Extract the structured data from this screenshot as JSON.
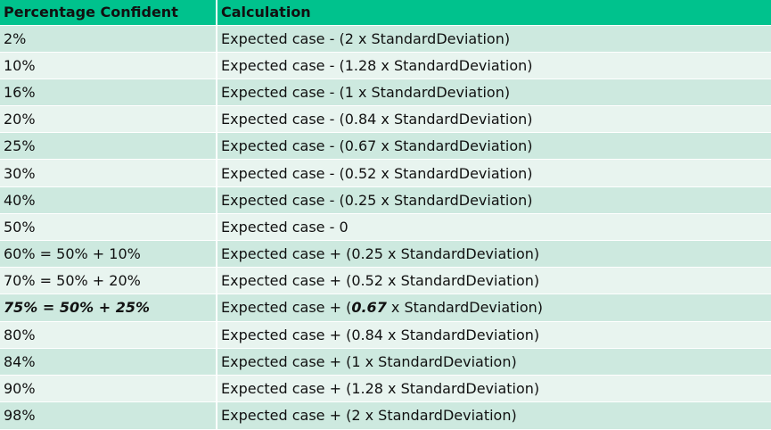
{
  "table": {
    "headers": [
      "Percentage Confident",
      "Calculation"
    ],
    "rows": [
      {
        "pct": "2%",
        "calc": "Expected case - (2 x StandardDeviation)"
      },
      {
        "pct": "10%",
        "calc": "Expected case - (1.28 x StandardDeviation)"
      },
      {
        "pct": "16%",
        "calc": "Expected case - (1 x StandardDeviation)"
      },
      {
        "pct": "20%",
        "calc": "Expected case - (0.84 x StandardDeviation)"
      },
      {
        "pct": "25%",
        "calc": "Expected case - (0.67 x StandardDeviation)"
      },
      {
        "pct": "30%",
        "calc": "Expected case - (0.52 x StandardDeviation)"
      },
      {
        "pct": "40%",
        "calc": "Expected case - (0.25 x StandardDeviation)"
      },
      {
        "pct": "50%",
        "calc": "Expected case - 0"
      },
      {
        "pct": "60% = 50% + 10%",
        "calc": "Expected case + (0.25 x StandardDeviation)"
      },
      {
        "pct": "70% = 50% + 20%",
        "calc": "Expected case + (0.52 x StandardDeviation)"
      },
      {
        "pct": "75% = 50% + 25%",
        "calc_pre": "Expected case + (",
        "calc_emph": "0.67",
        "calc_post": " x StandardDeviation)"
      },
      {
        "pct": "80%",
        "calc": "Expected case + (0.84 x StandardDeviation)"
      },
      {
        "pct": "84%",
        "calc": "Expected case + (1 x StandardDeviation)"
      },
      {
        "pct": "90%",
        "calc": "Expected case + (1.28 x StandardDeviation)"
      },
      {
        "pct": "98%",
        "calc": "Expected case + (2 x StandardDeviation)"
      }
    ]
  },
  "colors": {
    "header_bg": "#00c28d",
    "row_odd_bg": "#cde9df",
    "row_even_bg": "#e8f4ef"
  }
}
